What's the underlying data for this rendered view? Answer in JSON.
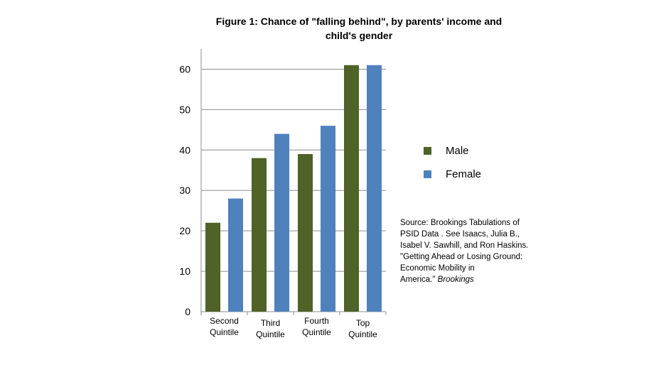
{
  "chart_data": {
    "type": "bar",
    "title_lines": [
      "Figure 1: Chance of \"falling behind\", by parents' income and",
      "child's gender"
    ],
    "categories": [
      [
        "Second",
        "Quintile"
      ],
      [
        "Third",
        "Quintile"
      ],
      [
        "Fourth",
        "Quintile"
      ],
      [
        "Top",
        "Quintile"
      ]
    ],
    "series": [
      {
        "name": "Male",
        "color": "#4f6228",
        "values": [
          22,
          38,
          39,
          61
        ]
      },
      {
        "name": "Female",
        "color": "#4f81bd",
        "values": [
          28,
          44,
          46,
          61
        ]
      }
    ],
    "ylim": [
      0,
      65
    ],
    "yticks": [
      0,
      10,
      20,
      30,
      40,
      50,
      60
    ],
    "grid": true,
    "legend_position": "right",
    "source": {
      "lines": [
        "Source:  Brookings Tabulations of",
        "PSID Data . See Isaacs, Julia B.,",
        "Isabel V. Sawhill, and Ron Haskins.",
        "\"Getting Ahead or Losing Ground:",
        "Economic Mobility in"
      ],
      "last_line": "America.\"",
      "publication": "Brookings"
    }
  }
}
